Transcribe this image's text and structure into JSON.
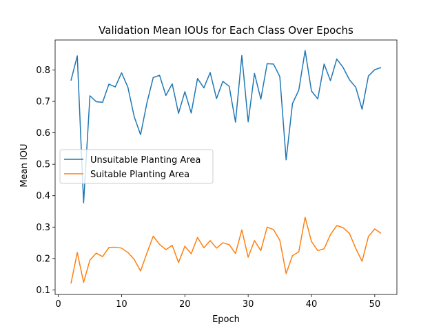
{
  "chart_data": {
    "type": "line",
    "title": "Validation Mean IOUs for Each Class Over Epochs",
    "xlabel": "Epoch",
    "ylabel": "Mean IOU",
    "xlim": [
      -0.5,
      53.5
    ],
    "ylim": [
      0.0855,
      0.8955
    ],
    "xticks": [
      0,
      10,
      20,
      30,
      40,
      50
    ],
    "yticks": [
      0.1,
      0.2,
      0.3,
      0.4,
      0.5,
      0.6,
      0.7,
      0.8
    ],
    "grid": false,
    "legend_position": "center-left",
    "x": [
      2,
      3,
      4,
      5,
      6,
      7,
      8,
      9,
      10,
      11,
      12,
      13,
      14,
      15,
      16,
      17,
      18,
      19,
      20,
      21,
      22,
      23,
      24,
      25,
      26,
      27,
      28,
      29,
      30,
      31,
      32,
      33,
      34,
      35,
      36,
      37,
      38,
      39,
      40,
      41,
      42,
      43,
      44,
      45,
      46,
      47,
      48,
      49,
      50,
      51
    ],
    "series": [
      {
        "name": "Unsuitable Planting Area",
        "color": "#1f77b4",
        "values": [
          0.766,
          0.845,
          0.377,
          0.718,
          0.699,
          0.697,
          0.755,
          0.746,
          0.791,
          0.745,
          0.651,
          0.594,
          0.695,
          0.776,
          0.783,
          0.719,
          0.756,
          0.662,
          0.731,
          0.663,
          0.773,
          0.743,
          0.792,
          0.709,
          0.764,
          0.748,
          0.634,
          0.846,
          0.635,
          0.789,
          0.707,
          0.82,
          0.819,
          0.779,
          0.514,
          0.693,
          0.736,
          0.862,
          0.733,
          0.708,
          0.819,
          0.766,
          0.835,
          0.808,
          0.769,
          0.745,
          0.675,
          0.781,
          0.801,
          0.808
        ]
      },
      {
        "name": "Suitable Planting Area",
        "color": "#ff7f0e",
        "values": [
          0.12,
          0.219,
          0.124,
          0.195,
          0.217,
          0.206,
          0.235,
          0.236,
          0.233,
          0.219,
          0.197,
          0.16,
          0.217,
          0.271,
          0.245,
          0.228,
          0.242,
          0.187,
          0.239,
          0.215,
          0.267,
          0.234,
          0.257,
          0.233,
          0.25,
          0.244,
          0.216,
          0.291,
          0.204,
          0.257,
          0.225,
          0.3,
          0.292,
          0.258,
          0.152,
          0.209,
          0.221,
          0.331,
          0.254,
          0.225,
          0.231,
          0.276,
          0.305,
          0.298,
          0.28,
          0.232,
          0.191,
          0.27,
          0.294,
          0.28
        ]
      }
    ]
  }
}
